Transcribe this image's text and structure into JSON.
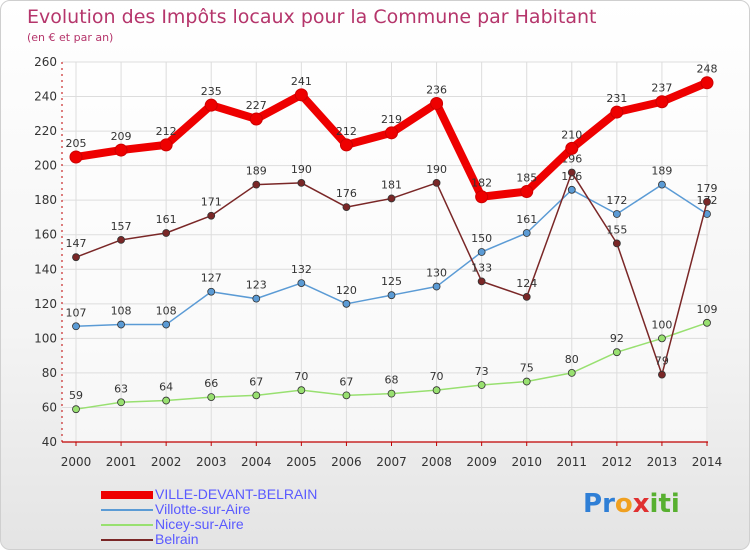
{
  "header": {
    "title": "Evolution des Impôts locaux pour la Commune par Habitant",
    "subtitle": "(en € et par an)"
  },
  "colors": {
    "title": "#b5356b",
    "axis": "#c00000",
    "legend_text": "#5a5aff"
  },
  "chart_data": {
    "type": "line",
    "x": [
      "2000",
      "2001",
      "2002",
      "2003",
      "2004",
      "2005",
      "2006",
      "2007",
      "2008",
      "2009",
      "2010",
      "2011",
      "2012",
      "2013",
      "2014"
    ],
    "yticks": [
      40,
      60,
      80,
      100,
      120,
      140,
      160,
      180,
      200,
      220,
      240,
      260
    ],
    "ylim": [
      40,
      260
    ],
    "grid": true,
    "legend": "bottom-left",
    "series": [
      {
        "name": "VILLE-DEVANT-BELRAIN",
        "color": "#ee0000",
        "width": 8,
        "values": [
          205,
          209,
          212,
          235,
          227,
          241,
          212,
          219,
          236,
          182,
          185,
          210,
          231,
          237,
          248
        ]
      },
      {
        "name": "Villotte-sur-Aire",
        "color": "#5b9bd5",
        "width": 1.5,
        "values": [
          107,
          108,
          108,
          127,
          123,
          132,
          120,
          125,
          130,
          150,
          161,
          186,
          172,
          189,
          172
        ]
      },
      {
        "name": "Nicey-sur-Aire",
        "color": "#98e070",
        "width": 1.5,
        "values": [
          59,
          63,
          64,
          66,
          67,
          70,
          67,
          68,
          70,
          73,
          75,
          80,
          92,
          100,
          109
        ]
      },
      {
        "name": "Belrain",
        "color": "#7a2727",
        "width": 1.5,
        "values": [
          147,
          157,
          161,
          171,
          189,
          190,
          176,
          181,
          190,
          133,
          124,
          196,
          155,
          79,
          179
        ]
      }
    ]
  },
  "logo": {
    "letters": [
      "P",
      "r",
      "o",
      "x",
      "i",
      "t",
      "i"
    ],
    "colors": [
      "#2f7fd6",
      "#2f7fd6",
      "#f0a020",
      "#e03030",
      "#58b030",
      "#58b030",
      "#58b030"
    ]
  }
}
